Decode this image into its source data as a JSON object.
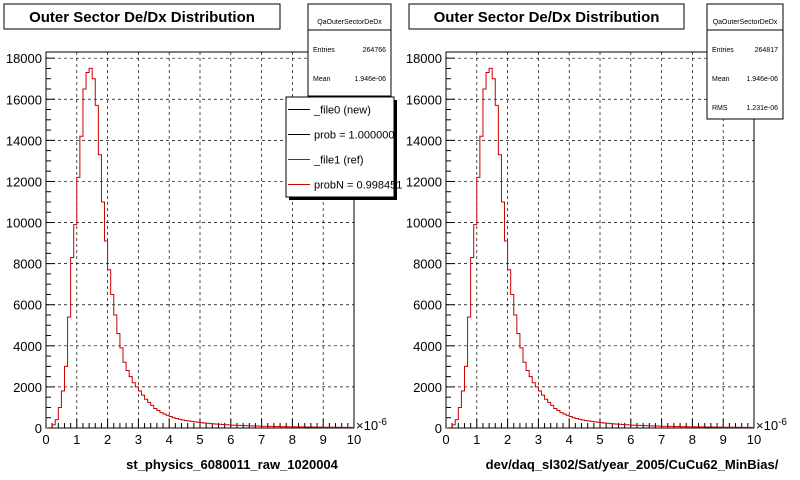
{
  "chart_data": [
    {
      "type": "line",
      "title": "Outer Sector De/Dx Distribution",
      "xlabel": "st_physics_6080011_raw_1020004",
      "x_exponent_label": "×10",
      "x_exponent_power": "-6",
      "xlim": [
        0,
        10
      ],
      "ylim": [
        0,
        18300
      ],
      "x_ticks": [
        "0",
        "1",
        "2",
        "3",
        "4",
        "5",
        "6",
        "7",
        "8",
        "9",
        "10"
      ],
      "y_ticks": [
        "0",
        "2000",
        "4000",
        "6000",
        "8000",
        "10000",
        "12000",
        "14000",
        "16000",
        "18000"
      ],
      "grid": true,
      "stats": {
        "name": "QaOuterSectorDeDx",
        "entries_label": "Entries",
        "entries_value": "264766",
        "mean_label": "Mean",
        "mean_value": "1.946e-06"
      },
      "legend": {
        "placement": "top-right",
        "entries": [
          {
            "label": "_file0 (new)",
            "color": "#000000"
          },
          {
            "label": "prob = 1.000000",
            "color": "#000000"
          },
          {
            "label": "_file1 (ref)",
            "color": "#cc0000"
          },
          {
            "label": "probN = 0.998451",
            "color": "#cc0000"
          }
        ]
      },
      "series": [
        {
          "color": "#cc0000",
          "bin_width": 0.1,
          "x_start": 0.0,
          "values": [
            0,
            20,
            150,
            400,
            1000,
            1800,
            3000,
            5400,
            8300,
            9900,
            12200,
            14200,
            16500,
            17300,
            17500,
            17000,
            15700,
            13300,
            11000,
            9100,
            7700,
            6500,
            5500,
            4600,
            3900,
            3200,
            2800,
            2500,
            2200,
            2000,
            1800,
            1600,
            1400,
            1250,
            1100,
            950,
            850,
            750,
            680,
            620,
            560,
            500,
            460,
            420,
            390,
            360,
            340,
            320,
            300,
            280,
            260,
            245,
            230,
            215,
            200,
            190,
            180,
            170,
            160,
            150,
            140,
            135,
            128,
            120,
            115,
            110,
            105,
            100,
            96,
            92,
            88,
            84,
            80,
            77,
            74,
            71,
            68,
            65,
            62,
            60,
            58,
            56,
            54,
            52,
            50,
            48,
            46,
            44,
            42,
            40,
            39,
            38,
            37,
            36,
            35,
            34,
            33,
            32,
            31,
            30
          ]
        }
      ]
    },
    {
      "type": "line",
      "title": "Outer Sector De/Dx Distribution",
      "xlabel": "dev/daq_sl302/Sat/year_2005/CuCu62_MinBias/",
      "x_exponent_label": "×10",
      "x_exponent_power": "-6",
      "xlim": [
        0,
        10
      ],
      "ylim": [
        0,
        18300
      ],
      "x_ticks": [
        "0",
        "1",
        "2",
        "3",
        "4",
        "5",
        "6",
        "7",
        "8",
        "9",
        "10"
      ],
      "y_ticks": [
        "0",
        "2000",
        "4000",
        "6000",
        "8000",
        "10000",
        "12000",
        "14000",
        "16000",
        "18000"
      ],
      "grid": true,
      "stats": {
        "name": "QaOuterSectorDeDx",
        "entries_label": "Entries",
        "entries_value": "264817",
        "mean_label": "Mean",
        "mean_value": "1.946e-06",
        "rms_label": "RMS",
        "rms_value": "1.231e-06"
      },
      "series": [
        {
          "color": "#cc0000",
          "bin_width": 0.1,
          "x_start": 0.0,
          "values": [
            0,
            20,
            150,
            400,
            1000,
            1800,
            3000,
            5400,
            8300,
            9900,
            12200,
            14200,
            16500,
            17300,
            17500,
            17000,
            15700,
            13300,
            11000,
            9100,
            7700,
            6500,
            5500,
            4600,
            3900,
            3200,
            2800,
            2500,
            2200,
            2000,
            1800,
            1600,
            1400,
            1250,
            1100,
            950,
            850,
            750,
            680,
            620,
            560,
            500,
            460,
            420,
            390,
            360,
            340,
            320,
            300,
            280,
            260,
            245,
            230,
            215,
            200,
            190,
            180,
            170,
            160,
            150,
            140,
            135,
            128,
            120,
            115,
            110,
            105,
            100,
            96,
            92,
            88,
            84,
            80,
            77,
            74,
            71,
            68,
            65,
            62,
            60,
            58,
            56,
            54,
            52,
            50,
            48,
            46,
            44,
            42,
            40,
            39,
            38,
            37,
            36,
            35,
            34,
            33,
            32,
            31,
            30
          ]
        }
      ]
    }
  ]
}
